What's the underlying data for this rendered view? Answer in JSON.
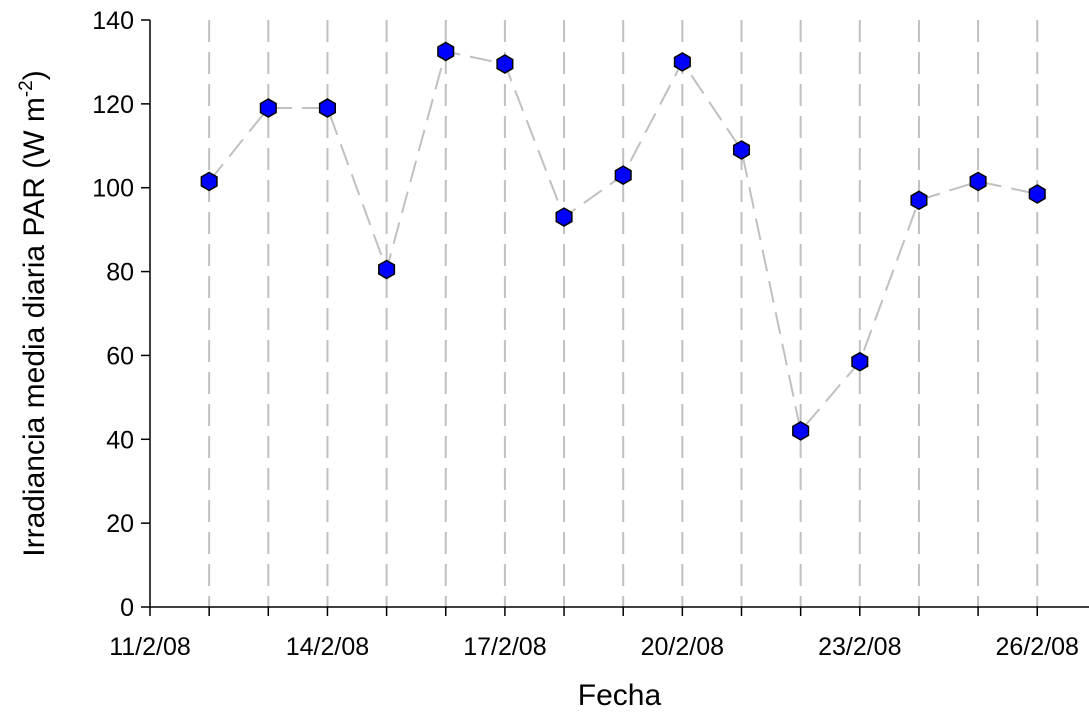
{
  "chart_data": {
    "type": "line",
    "xlabel": "Fecha",
    "ylabel": "Irradiancia media diaria PAR (W m-2)",
    "ylabel_main": "Irradiancia media diaria PAR (W m",
    "ylabel_sup": "-2",
    "ylabel_end": ")",
    "x_ticks": [
      "11/2/08",
      "14/2/08",
      "17/2/08",
      "20/2/08",
      "23/2/08",
      "26/2/08"
    ],
    "y_ticks": [
      "0",
      "20",
      "40",
      "60",
      "80",
      "100",
      "120",
      "140"
    ],
    "ylim": [
      0,
      140
    ],
    "xlim": [
      "11/2/08",
      "27/2/08"
    ],
    "grid": "vertical dashed lines at each day",
    "series": [
      {
        "marker_color": "#0000ff",
        "line_color": "#c0c0c0",
        "x": [
          "12/2/08",
          "13/2/08",
          "14/2/08",
          "15/2/08",
          "16/2/08",
          "17/2/08",
          "18/2/08",
          "19/2/08",
          "20/2/08",
          "21/2/08",
          "22/2/08",
          "23/2/08",
          "24/2/08",
          "25/2/08",
          "26/2/08"
        ],
        "values": [
          101.5,
          119,
          119,
          80.5,
          132.5,
          129.5,
          93,
          103,
          130,
          109,
          42,
          58.5,
          97,
          101.5,
          98.5
        ]
      }
    ]
  }
}
